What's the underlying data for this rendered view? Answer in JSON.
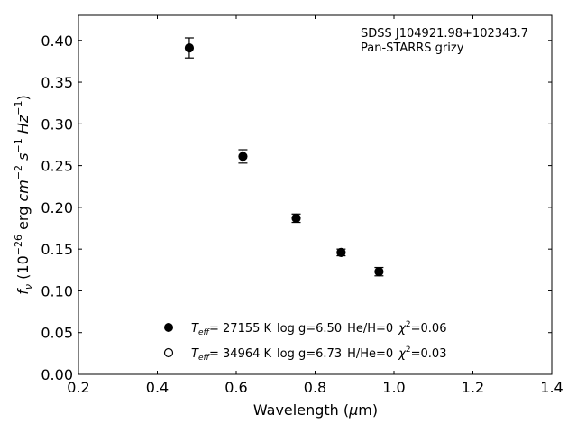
{
  "chart_data": {
    "type": "scatter",
    "title": "",
    "xlabel": "Wavelength (μm)",
    "ylabel": "f_ν (10^-26 erg cm^-2 s^-1 Hz^-1)",
    "xlim": [
      0.2,
      1.4
    ],
    "ylim": [
      0.0,
      0.43
    ],
    "xticks": [
      0.2,
      0.4,
      0.6,
      0.8,
      1.0,
      1.2,
      1.4
    ],
    "yticks": [
      0.0,
      0.05,
      0.1,
      0.15,
      0.2,
      0.25,
      0.3,
      0.35,
      0.4
    ],
    "x_tick_labels": [
      "0.2",
      "0.4",
      "0.6",
      "0.8",
      "1.0",
      "1.2",
      "1.4"
    ],
    "y_tick_labels": [
      "0.00",
      "0.05",
      "0.10",
      "0.15",
      "0.20",
      "0.25",
      "0.30",
      "0.35",
      "0.40"
    ],
    "grid": false,
    "annotation": {
      "line1": "SDSS J104921.98+102343.7",
      "line2": "Pan-STARRS grizy"
    },
    "series": [
      {
        "name": "Teff= 27155 K log g=6.50 He/H=0 χ2=0.06",
        "marker": "filled-circle",
        "x": [
          0.481,
          0.617,
          0.752,
          0.866,
          0.962
        ],
        "y": [
          0.391,
          0.261,
          0.187,
          0.146,
          0.123
        ],
        "yerr": [
          0.012,
          0.008,
          0.005,
          0.004,
          0.005
        ]
      },
      {
        "name": "Teff= 34964 K log g=6.73 H/He=0 χ2=0.03",
        "marker": "open-circle",
        "x": [],
        "y": []
      }
    ],
    "legend": {
      "placement": "lower-center",
      "entries": [
        {
          "teff_value": "= 27155 K",
          "logg": "log g=6.50",
          "comp": "He/H=0",
          "chi_value": "=0.06"
        },
        {
          "teff_value": "= 34964 K",
          "logg": "log g=6.73",
          "comp": "H/He=0",
          "chi_value": "=0.03"
        }
      ]
    },
    "colors": {
      "marker": "#000000",
      "axis": "#000000",
      "background": "#ffffff"
    }
  }
}
